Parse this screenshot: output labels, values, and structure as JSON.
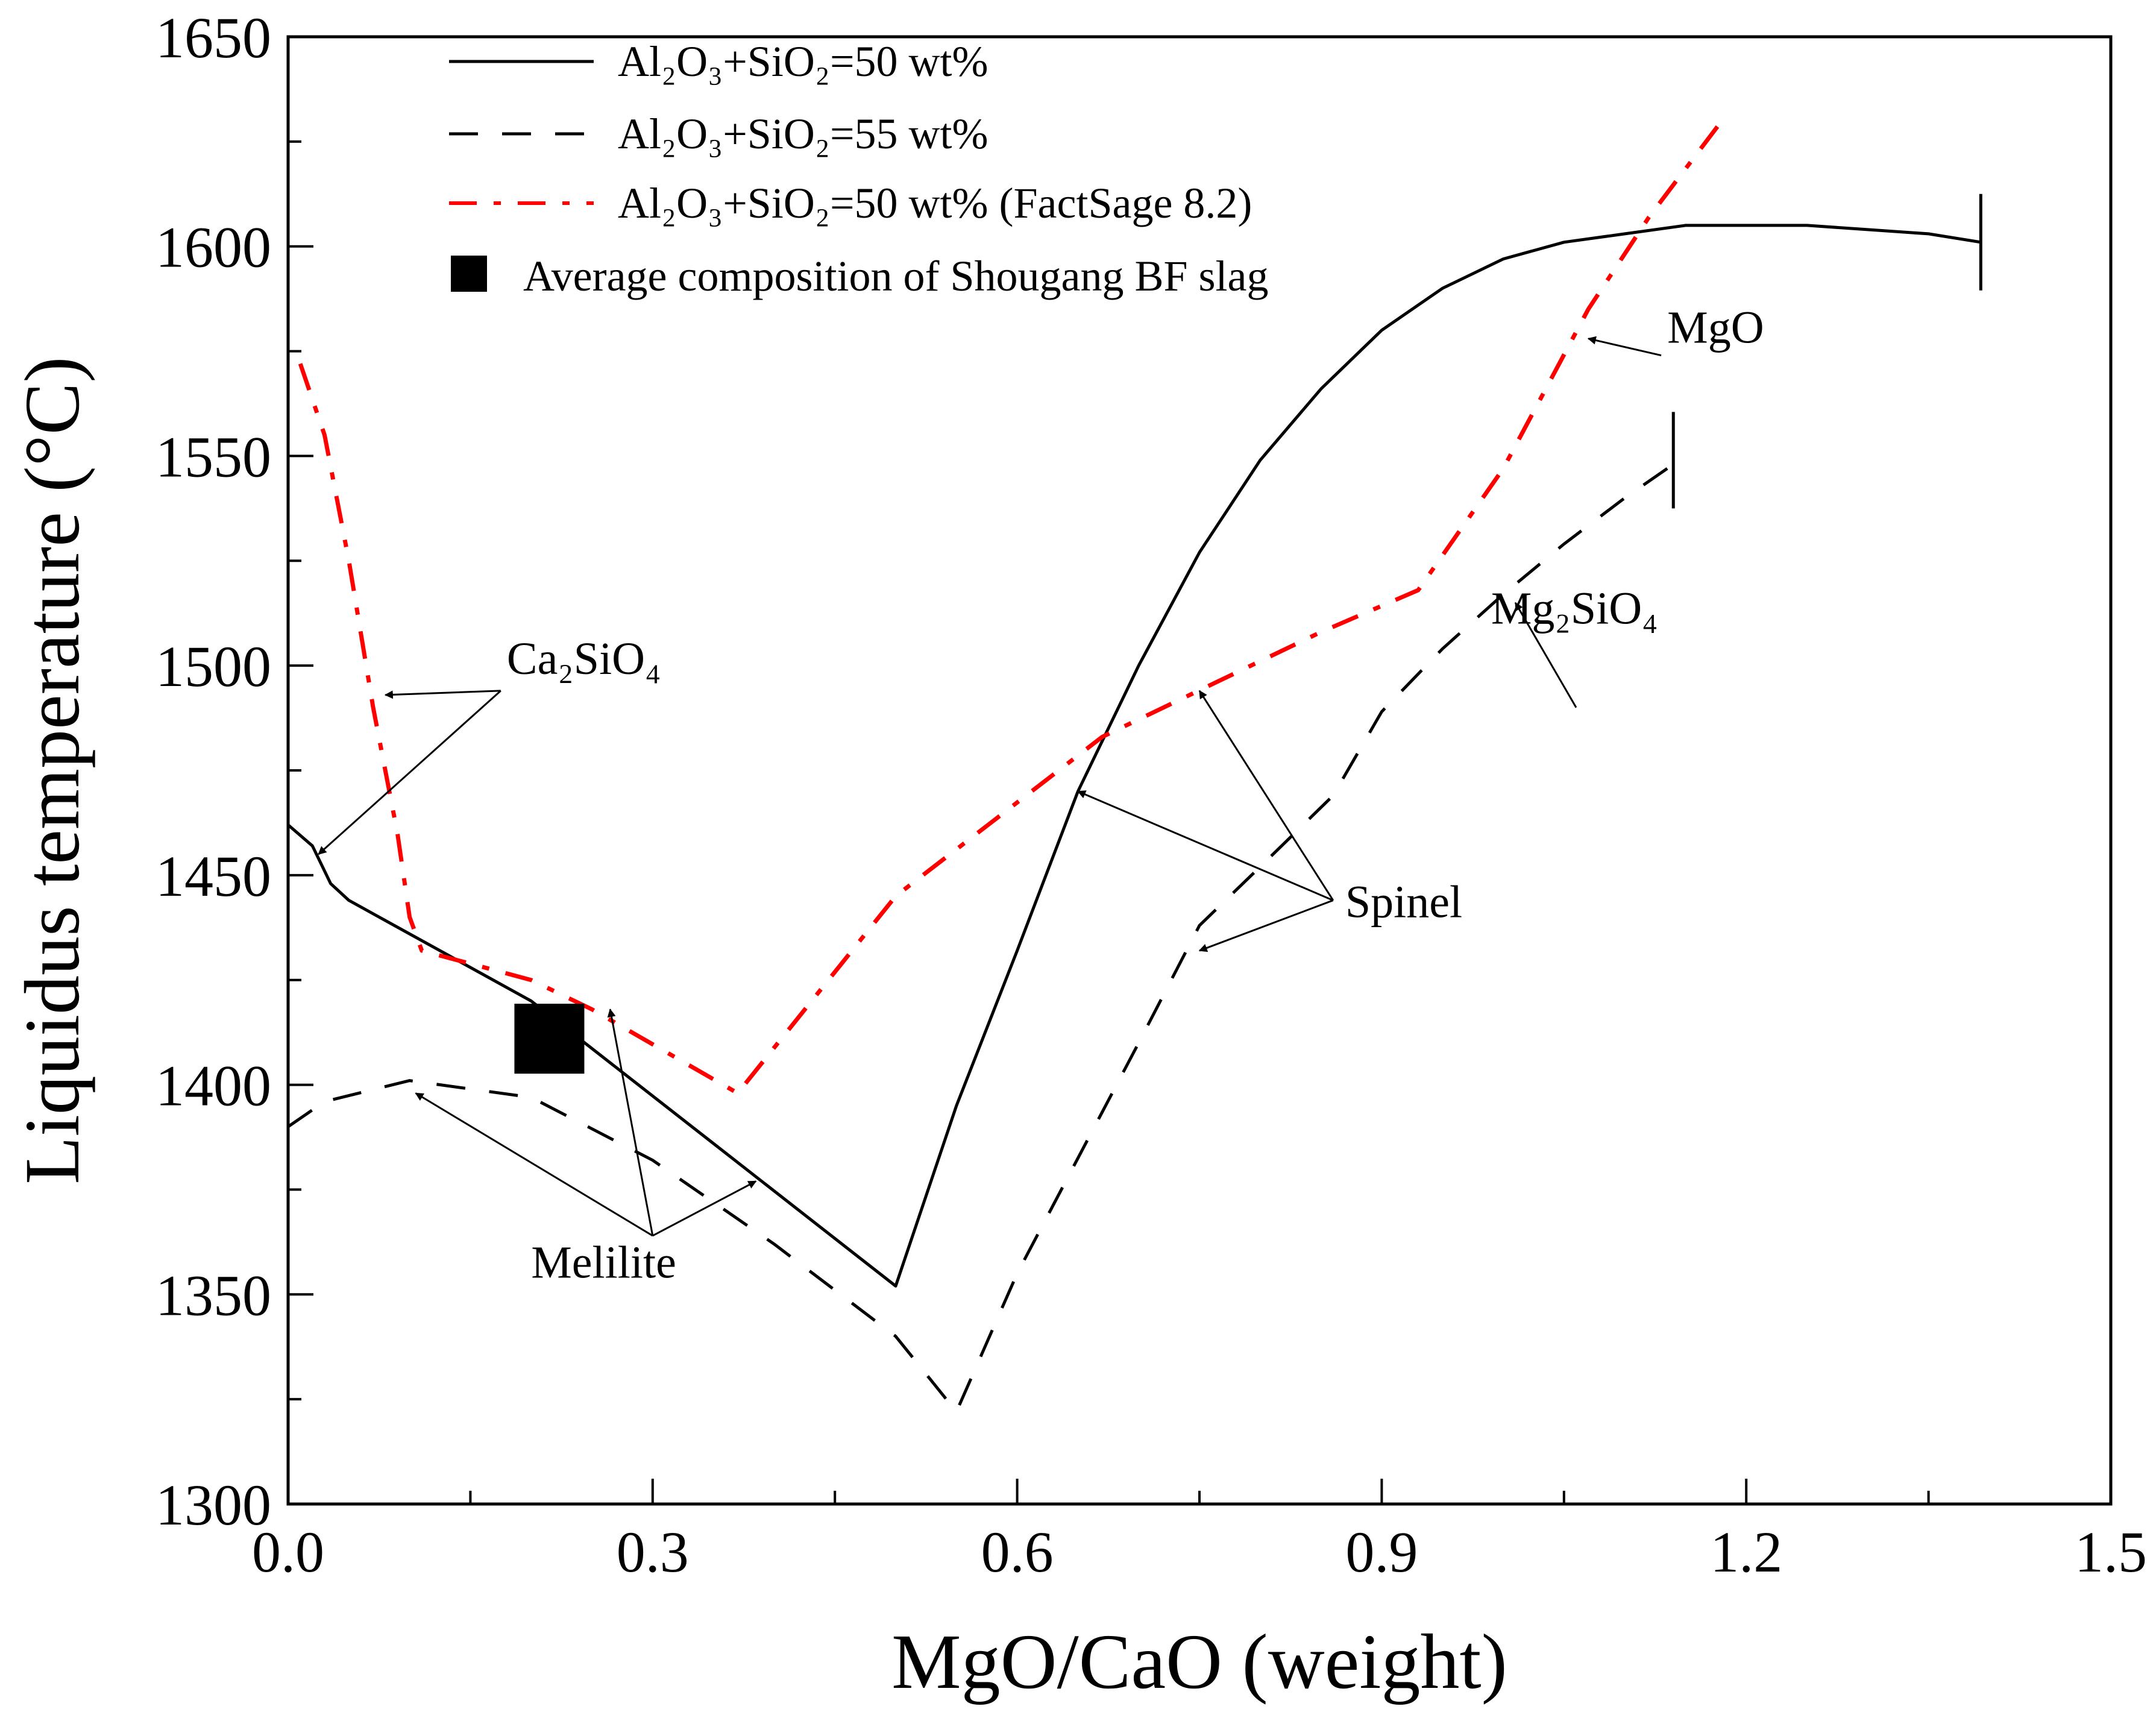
{
  "chart_data": {
    "type": "line",
    "title": "",
    "xlabel": "MgO/CaO (weight)",
    "ylabel": "Liquidus temperature (°C)",
    "xlim": [
      0.0,
      1.5
    ],
    "ylim": [
      1300,
      1650
    ],
    "x_ticks": [
      "0.0",
      "0.3",
      "0.6",
      "0.9",
      "1.2",
      "1.5"
    ],
    "y_ticks": [
      "1300",
      "1350",
      "1400",
      "1450",
      "1500",
      "1550",
      "1600",
      "1650"
    ],
    "grid": false,
    "legend_position": "top-left",
    "legend": [
      {
        "label": "Al₂O₃+SiO₂=50 wt%",
        "style": "solid",
        "color": "#000000"
      },
      {
        "label": "Al₂O₃+SiO₂=55 wt%",
        "style": "dashed",
        "color": "#000000"
      },
      {
        "label": "Al₂O₃+SiO₂=50 wt% (FactSage 8.2)",
        "style": "dashdot",
        "color": "#ff0000"
      },
      {
        "label": "Average composition of Shougang BF slag",
        "style": "square",
        "color": "#000000"
      }
    ],
    "series": [
      {
        "name": "Al₂O₃+SiO₂=50 wt%",
        "style": "solid",
        "color": "#000000",
        "points": [
          [
            0.0,
            1462
          ],
          [
            0.02,
            1457
          ],
          [
            0.035,
            1448
          ],
          [
            0.05,
            1444
          ],
          [
            0.2,
            1420
          ],
          [
            0.35,
            1386
          ],
          [
            0.5,
            1352
          ],
          [
            0.55,
            1395
          ],
          [
            0.6,
            1432
          ],
          [
            0.65,
            1470
          ],
          [
            0.7,
            1500
          ],
          [
            0.75,
            1527
          ],
          [
            0.8,
            1549
          ],
          [
            0.85,
            1566
          ],
          [
            0.9,
            1580
          ],
          [
            0.95,
            1590
          ],
          [
            1.0,
            1597
          ],
          [
            1.05,
            1601
          ],
          [
            1.1,
            1603
          ],
          [
            1.15,
            1605
          ],
          [
            1.2,
            1605
          ],
          [
            1.25,
            1605
          ],
          [
            1.3,
            1604
          ],
          [
            1.35,
            1603
          ],
          [
            1.393,
            1601
          ]
        ]
      },
      {
        "name": "Al₂O₃+SiO₂=55 wt%",
        "style": "dashed",
        "color": "#000000",
        "points": [
          [
            0.0,
            1390
          ],
          [
            0.03,
            1396
          ],
          [
            0.1,
            1401
          ],
          [
            0.2,
            1397
          ],
          [
            0.3,
            1382
          ],
          [
            0.4,
            1362
          ],
          [
            0.5,
            1340
          ],
          [
            0.55,
            1322
          ],
          [
            0.6,
            1355
          ],
          [
            0.7,
            1410
          ],
          [
            0.75,
            1438
          ],
          [
            0.8,
            1452
          ],
          [
            0.86,
            1469
          ],
          [
            0.9,
            1489
          ],
          [
            0.95,
            1504
          ],
          [
            1.0,
            1517
          ],
          [
            1.05,
            1529
          ],
          [
            1.1,
            1540
          ],
          [
            1.14,
            1548
          ]
        ]
      },
      {
        "name": "Al₂O₃+SiO₂=50 wt% (FactSage 8.2)",
        "style": "dashdot",
        "color": "#ff0000",
        "points": [
          [
            0.01,
            1572
          ],
          [
            0.03,
            1555
          ],
          [
            0.05,
            1525
          ],
          [
            0.07,
            1490
          ],
          [
            0.09,
            1460
          ],
          [
            0.1,
            1440
          ],
          [
            0.11,
            1432
          ],
          [
            0.2,
            1425
          ],
          [
            0.25,
            1418
          ],
          [
            0.37,
            1398
          ],
          [
            0.5,
            1445
          ],
          [
            0.67,
            1483
          ],
          [
            0.85,
            1508
          ],
          [
            0.93,
            1518
          ],
          [
            1.0,
            1547
          ],
          [
            1.07,
            1585
          ],
          [
            1.12,
            1607
          ],
          [
            1.18,
            1630
          ]
        ]
      }
    ],
    "markers": [
      {
        "name": "Average composition of Shougang BF slag",
        "x": 0.215,
        "y": 1411,
        "shape": "square"
      }
    ],
    "end_markers": [
      {
        "x": 1.393,
        "y": 1601
      },
      {
        "x": 1.14,
        "y": 1549
      }
    ],
    "annotations": [
      {
        "text": "Ca₂SiO₄",
        "text_at": [
          0.18,
          1498
        ],
        "arrow_from": [
          0.175,
          1494
        ],
        "arrow_targets": [
          [
            0.08,
            1493
          ],
          [
            0.025,
            1455
          ]
        ]
      },
      {
        "text": "MgO",
        "text_at": [
          1.135,
          1577
        ],
        "arrow_from": [
          1.13,
          1574
        ],
        "arrow_targets": [
          [
            1.07,
            1578
          ]
        ]
      },
      {
        "text": "Mg₂SiO₄",
        "text_at": [
          0.99,
          1510
        ],
        "arrow_from": [
          1.06,
          1490
        ],
        "arrow_targets": [
          [
            1.01,
            1515
          ]
        ]
      },
      {
        "text": "Spinel",
        "text_at": [
          0.87,
          1440
        ],
        "arrow_from": [
          0.86,
          1444
        ],
        "arrow_targets": [
          [
            0.65,
            1470
          ],
          [
            0.75,
            1494
          ],
          [
            0.75,
            1432
          ]
        ]
      },
      {
        "text": "Melilite",
        "text_at": [
          0.2,
          1354
        ],
        "arrow_from": [
          0.3,
          1364
        ],
        "arrow_targets": [
          [
            0.105,
            1398
          ],
          [
            0.265,
            1418
          ],
          [
            0.385,
            1377
          ]
        ]
      }
    ]
  }
}
